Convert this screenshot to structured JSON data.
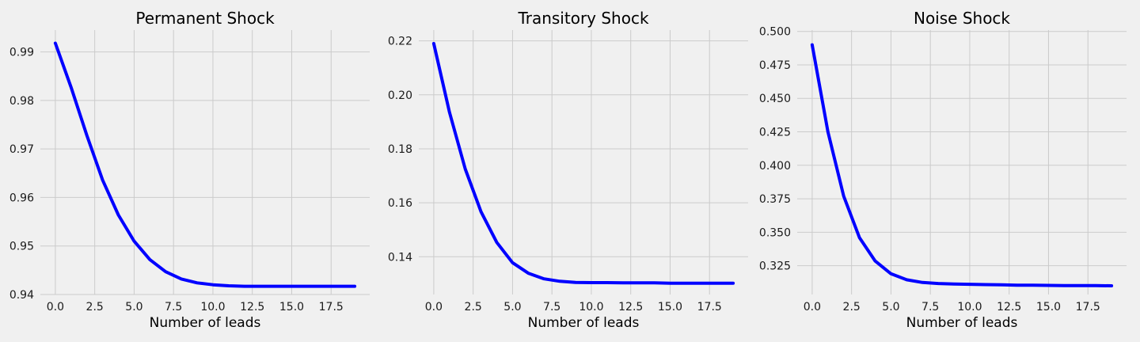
{
  "chart_data": [
    {
      "type": "line",
      "title": "Permanent Shock",
      "xlabel": "Number of leads",
      "ylabel": "",
      "xlim": [
        -0.95,
        19.95
      ],
      "ylim": [
        0.94,
        0.9945
      ],
      "xticks": [
        "0.0",
        "2.5",
        "5.0",
        "7.5",
        "10.0",
        "12.5",
        "15.0",
        "17.5"
      ],
      "yticks": [
        "0.94",
        "0.95",
        "0.96",
        "0.97",
        "0.98",
        "0.99"
      ],
      "grid": true,
      "color": "#0000ff",
      "x": [
        0,
        1,
        2,
        3,
        4,
        5,
        6,
        7,
        8,
        9,
        10,
        11,
        12,
        13,
        14,
        15,
        16,
        17,
        18,
        19
      ],
      "y": [
        0.9918,
        0.9827,
        0.9728,
        0.9636,
        0.9564,
        0.951,
        0.9472,
        0.9447,
        0.9432,
        0.9424,
        0.942,
        0.9418,
        0.9417,
        0.9417,
        0.9417,
        0.9417,
        0.9417,
        0.9417,
        0.9417,
        0.9417
      ]
    },
    {
      "type": "line",
      "title": "Transitory Shock",
      "xlabel": "Number of leads",
      "ylabel": "",
      "xlim": [
        -0.95,
        19.95
      ],
      "ylim": [
        0.126,
        0.224
      ],
      "xticks": [
        "0.0",
        "2.5",
        "5.0",
        "7.5",
        "10.0",
        "12.5",
        "15.0",
        "17.5"
      ],
      "yticks": [
        "0.14",
        "0.16",
        "0.18",
        "0.20",
        "0.22"
      ],
      "grid": true,
      "color": "#0000ff",
      "x": [
        0,
        1,
        2,
        3,
        4,
        5,
        6,
        7,
        8,
        9,
        10,
        11,
        12,
        13,
        14,
        15,
        16,
        17,
        18,
        19
      ],
      "y": [
        0.219,
        0.1935,
        0.1725,
        0.1567,
        0.1453,
        0.1378,
        0.1339,
        0.1318,
        0.1309,
        0.1305,
        0.1304,
        0.1304,
        0.1303,
        0.1303,
        0.1303,
        0.1302,
        0.1302,
        0.1302,
        0.1302,
        0.1302
      ]
    },
    {
      "type": "line",
      "title": "Noise Shock",
      "xlabel": "Number of leads",
      "ylabel": "",
      "xlim": [
        -0.95,
        19.95
      ],
      "ylim": [
        0.3035,
        0.501
      ],
      "xticks": [
        "0.0",
        "2.5",
        "5.0",
        "7.5",
        "10.0",
        "12.5",
        "15.0",
        "17.5"
      ],
      "yticks": [
        "0.325",
        "0.350",
        "0.375",
        "0.400",
        "0.425",
        "0.450",
        "0.475",
        "0.500"
      ],
      "grid": true,
      "color": "#0000ff",
      "x": [
        0,
        1,
        2,
        3,
        4,
        5,
        6,
        7,
        8,
        9,
        10,
        11,
        12,
        13,
        14,
        15,
        16,
        17,
        18,
        19
      ],
      "y": [
        0.49,
        0.425,
        0.377,
        0.346,
        0.3285,
        0.319,
        0.3145,
        0.3125,
        0.3117,
        0.3113,
        0.3111,
        0.3109,
        0.3107,
        0.3105,
        0.3104,
        0.3103,
        0.3102,
        0.3101,
        0.3101,
        0.31
      ]
    }
  ]
}
